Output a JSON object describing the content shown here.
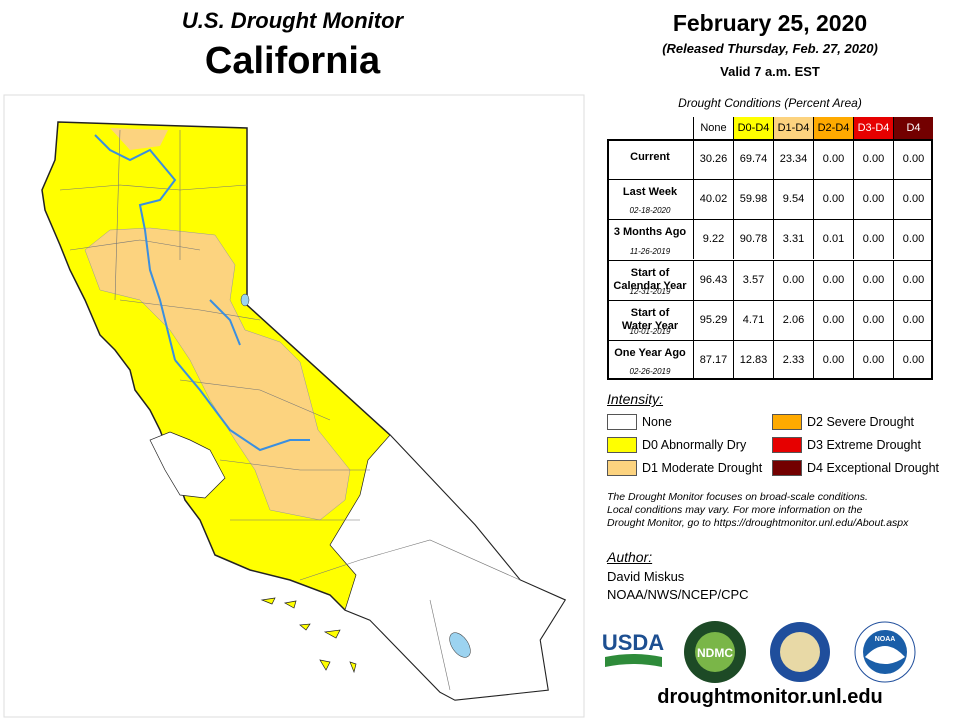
{
  "header": {
    "subtitle": "U.S. Drought Monitor",
    "title": "California",
    "date": "February 25, 2020",
    "released": "(Released Thursday, Feb. 27, 2020)",
    "valid": "Valid 7 a.m. EST"
  },
  "table": {
    "caption": "Drought Conditions (Percent Area)",
    "columns": [
      {
        "label": "None",
        "color": "#ffffff",
        "text_color": "#000000"
      },
      {
        "label": "D0-D4",
        "color": "#ffff00",
        "text_color": "#000000"
      },
      {
        "label": "D1-D4",
        "color": "#fcd37f",
        "text_color": "#000000"
      },
      {
        "label": "D2-D4",
        "color": "#ffaa00",
        "text_color": "#000000"
      },
      {
        "label": "D3-D4",
        "color": "#e60000",
        "text_color": "#ffffff"
      },
      {
        "label": "D4",
        "color": "#730000",
        "text_color": "#ffffff"
      }
    ],
    "rows": [
      {
        "label": "Current",
        "values": [
          "30.26",
          "69.74",
          "23.34",
          "0.00",
          "0.00",
          "0.00"
        ]
      },
      {
        "label": "Last Week",
        "date": "02-18-2020",
        "values": [
          "40.02",
          "59.98",
          "9.54",
          "0.00",
          "0.00",
          "0.00"
        ]
      },
      {
        "label": "3 Months Ago",
        "date": "11-26-2019",
        "values": [
          "9.22",
          "90.78",
          "3.31",
          "0.01",
          "0.00",
          "0.00"
        ]
      },
      {
        "label": "Start of\nCalendar Year",
        "date": "12-31-2019",
        "values": [
          "96.43",
          "3.57",
          "0.00",
          "0.00",
          "0.00",
          "0.00"
        ]
      },
      {
        "label": "Start of\nWater Year",
        "date": "10-01-2019",
        "values": [
          "95.29",
          "4.71",
          "2.06",
          "0.00",
          "0.00",
          "0.00"
        ]
      },
      {
        "label": "One Year Ago",
        "date": "02-26-2019",
        "values": [
          "87.17",
          "12.83",
          "2.33",
          "0.00",
          "0.00",
          "0.00"
        ]
      }
    ]
  },
  "intensity": {
    "title": "Intensity:",
    "items": [
      {
        "label": "None",
        "color": "#ffffff"
      },
      {
        "label": "D0 Abnormally Dry",
        "color": "#ffff00"
      },
      {
        "label": "D1 Moderate Drought",
        "color": "#fcd37f"
      },
      {
        "label": "D2 Severe Drought",
        "color": "#ffaa00"
      },
      {
        "label": "D3 Extreme Drought",
        "color": "#e60000"
      },
      {
        "label": "D4 Exceptional Drought",
        "color": "#730000"
      }
    ]
  },
  "note": [
    "The Drought Monitor focuses on broad-scale conditions.",
    "Local conditions may vary. For more information on the",
    "Drought Monitor, go to https://droughtmonitor.unl.edu/About.aspx"
  ],
  "author": {
    "title": "Author:",
    "name": "David Miskus",
    "org": "NOAA/NWS/NCEP/CPC"
  },
  "logos": {
    "usda": "USDA",
    "ndmc": "NDMC",
    "noaa": "NOAA"
  },
  "url": "droughtmonitor.unl.edu"
}
